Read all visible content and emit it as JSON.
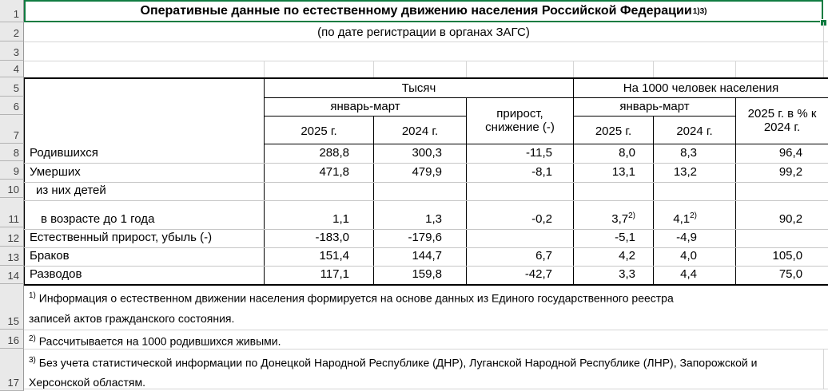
{
  "colors": {
    "selection_green": "#107C41",
    "gutter_bg": "#e9e9e9"
  },
  "title": {
    "text": "Оперативные данные по естественному движению населения Российской Федерации",
    "superscript": "1)3)"
  },
  "subtitle": "(по дате регистрации в органах ЗАГС)",
  "row_numbers": [
    "1",
    "2",
    "3",
    "4",
    "5",
    "6",
    "7",
    "8",
    "9",
    "10",
    "11",
    "12",
    "13",
    "14",
    "15",
    "16",
    "17"
  ],
  "table": {
    "group_thousands": "Тысяч",
    "group_per1000": "На 1000 человек населения",
    "period": "январь-март",
    "increase_header": "прирост, снижение (-)",
    "percent_header": "2025 г. в % к 2024 г.",
    "year_2025": "2025 г.",
    "year_2024": "2024 г.",
    "rows": [
      {
        "label": "Родившихся",
        "t2025": "288,8",
        "t2024": "300,3",
        "diff": "-11,5",
        "p2025": "8,0",
        "p2024": "8,3",
        "pct": "96,4"
      },
      {
        "label": "Умерших",
        "t2025": "471,8",
        "t2024": "479,9",
        "diff": "-8,1",
        "p2025": "13,1",
        "p2024": "13,2",
        "pct": "99,2"
      },
      {
        "label": "из них детей",
        "t2025": "",
        "t2024": "",
        "diff": "",
        "p2025": "",
        "p2024": "",
        "pct": ""
      },
      {
        "label": "в возрасте до 1 года",
        "t2025": "1,1",
        "t2024": "1,3",
        "diff": "-0,2",
        "p2025": "3,7",
        "p2025_sup": "2)",
        "p2024": "4,1",
        "p2024_sup": "2)",
        "pct": "90,2"
      },
      {
        "label": "Естественный прирост, убыль (-)",
        "t2025": "-183,0",
        "t2024": "-179,6",
        "diff": "",
        "p2025": "-5,1",
        "p2024": "-4,9",
        "pct": ""
      },
      {
        "label": "Браков",
        "t2025": "151,4",
        "t2024": "144,7",
        "diff": "6,7",
        "p2025": "4,2",
        "p2024": "4,0",
        "pct": "105,0"
      },
      {
        "label": "Разводов",
        "t2025": "117,1",
        "t2024": "159,8",
        "diff": "-42,7",
        "p2025": "3,3",
        "p2024": "4,4",
        "pct": "75,0"
      }
    ]
  },
  "footnotes": [
    {
      "marker": "1)",
      "lines": [
        "Информация о естественном движении населения формируется на основе данных из Единого государственного реестра",
        "записей актов гражданского состояния."
      ]
    },
    {
      "marker": "2)",
      "lines": [
        "Рассчитывается на 1000 родившихся живыми."
      ]
    },
    {
      "marker": "3)",
      "lines": [
        "Без учета статистической информации по Донецкой Народной Республике (ДНР), Луганской Народной Республике (ЛНР), Запорожской и",
        "Херсонской областям."
      ]
    }
  ]
}
